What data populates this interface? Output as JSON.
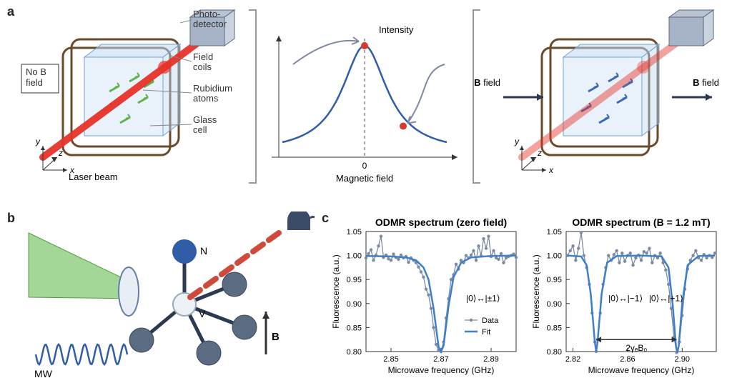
{
  "labels": {
    "a": "a",
    "b": "b",
    "c": "c"
  },
  "panel_a": {
    "photodetector": "Photo-\ndetector",
    "field_coils": "Field\ncoils",
    "rubidium": "Rubidium\natoms",
    "glass_cell": "Glass\ncell",
    "no_b": "No B\nfield",
    "b_field": "B field",
    "laser": "Laser beam",
    "axes": {
      "x": "x",
      "y": "y",
      "z": "z"
    },
    "center_plot": {
      "title_top": "Intensity",
      "xlabel": "Magnetic field",
      "tick0": "0",
      "curve_color": "#2f5da8",
      "marker_color": "#d93a2b",
      "arrow_color": "#7d8aa0",
      "dash_color": "#555555",
      "axis_color": "#333333"
    },
    "colors": {
      "laser": "#e6332a",
      "coil": "#6b4a2a",
      "cell_fill": "#bfd9f0",
      "cell_edge": "#6fa3d8",
      "detector_fill": "#a7b4c8",
      "detector_edge": "#5a6b82",
      "atom_green": "#5fb24a",
      "atom_blue": "#3b68b8",
      "box_edge": "#333333",
      "axis_arrow": "#333333"
    }
  },
  "panel_b": {
    "mw_label": "MW",
    "n_label": "N",
    "v_label": "V",
    "b_label": "B",
    "colors": {
      "green_beam": "#7cc46b",
      "green_beam_edge": "#4f9f3d",
      "objective_fill": "#e8eef5",
      "objective_edge": "#6380a4",
      "red_fluor": "#cf4a3b",
      "detector": "#3a4c66",
      "mw_wave": "#2f5da8",
      "atom_n": "#2f5da8",
      "atom_v": "#eef2f7",
      "atom_v_edge": "#99a8bd",
      "atom_c": "#5a6b82",
      "bond": "#2b3a50",
      "b_arrow": "#333333"
    }
  },
  "panel_c": {
    "left": {
      "title": "ODMR spectrum (zero field)",
      "ylabel": "Fluorescence (a.u.)",
      "xlabel": "Microwave frequency (GHz)",
      "annotation": "|0⟩↔|±1⟩",
      "legend_data": "Data",
      "legend_fit": "Fit",
      "xlim": [
        2.84,
        2.9
      ],
      "xticks": [
        2.85,
        2.87,
        2.89
      ],
      "ylim": [
        0.8,
        1.05
      ],
      "yticks": [
        0.8,
        0.85,
        0.9,
        0.95,
        1.0,
        1.05
      ],
      "data_color": "#7b8aa5",
      "fit_color": "#3f7fc9",
      "marker_r": 2.2,
      "data": [
        [
          2.84,
          0.995
        ],
        [
          2.841,
          1.004
        ],
        [
          2.842,
          1.012
        ],
        [
          2.843,
          0.99
        ],
        [
          2.844,
          1.001
        ],
        [
          2.845,
          1.02
        ],
        [
          2.846,
          1.04
        ],
        [
          2.847,
          0.996
        ],
        [
          2.848,
          1.001
        ],
        [
          2.849,
          0.993
        ],
        [
          2.85,
          0.99
        ],
        [
          2.851,
          1.003
        ],
        [
          2.852,
          0.996
        ],
        [
          2.853,
          0.992
        ],
        [
          2.854,
          1.001
        ],
        [
          2.855,
          0.995
        ],
        [
          2.856,
          0.998
        ],
        [
          2.857,
          0.986
        ],
        [
          2.858,
          0.995
        ],
        [
          2.859,
          0.99
        ],
        [
          2.86,
          0.985
        ],
        [
          2.861,
          0.976
        ],
        [
          2.862,
          0.966
        ],
        [
          2.863,
          0.955
        ],
        [
          2.864,
          0.93
        ],
        [
          2.865,
          0.918
        ],
        [
          2.866,
          0.89
        ],
        [
          2.867,
          0.85
        ],
        [
          2.868,
          0.815
        ],
        [
          2.869,
          0.803
        ],
        [
          2.87,
          0.8
        ],
        [
          2.871,
          0.82
        ],
        [
          2.872,
          0.87
        ],
        [
          2.873,
          0.91
        ],
        [
          2.874,
          0.95
        ],
        [
          2.875,
          0.96
        ],
        [
          2.876,
          0.982
        ],
        [
          2.877,
          0.972
        ],
        [
          2.878,
          0.99
        ],
        [
          2.879,
          0.985
        ],
        [
          2.88,
          1.0
        ],
        [
          2.881,
          0.995
        ],
        [
          2.882,
          1.001
        ],
        [
          2.883,
          1.01
        ],
        [
          2.884,
          0.99
        ],
        [
          2.885,
          1.02
        ],
        [
          2.886,
          1.0
        ],
        [
          2.887,
          1.035
        ],
        [
          2.888,
          1.015
        ],
        [
          2.889,
          1.04
        ],
        [
          2.89,
          0.998
        ],
        [
          2.891,
          1.01
        ],
        [
          2.892,
          0.995
        ],
        [
          2.893,
          0.992
        ],
        [
          2.894,
          1.004
        ],
        [
          2.895,
          0.985
        ],
        [
          2.896,
          0.995
        ],
        [
          2.897,
          0.998
        ],
        [
          2.898,
          1.0
        ],
        [
          2.899,
          1.003
        ],
        [
          2.9,
          0.996
        ]
      ],
      "fit": [
        [
          2.84,
          0.999
        ],
        [
          2.85,
          0.998
        ],
        [
          2.856,
          0.996
        ],
        [
          2.86,
          0.99
        ],
        [
          2.863,
          0.975
        ],
        [
          2.865,
          0.95
        ],
        [
          2.867,
          0.89
        ],
        [
          2.869,
          0.81
        ],
        [
          2.87,
          0.8
        ],
        [
          2.871,
          0.812
        ],
        [
          2.873,
          0.895
        ],
        [
          2.875,
          0.955
        ],
        [
          2.878,
          0.985
        ],
        [
          2.882,
          0.996
        ],
        [
          2.89,
          0.999
        ],
        [
          2.9,
          1.0
        ]
      ]
    },
    "right": {
      "title": "ODMR spectrum (B = 1.2 mT)",
      "ylabel": "Fluorescence (a.u.)",
      "xlabel": "Microwave frequency (GHz)",
      "annotation_left": "|0⟩↔|−1⟩",
      "annotation_right": "|0⟩↔|+1⟩",
      "split_label": "2γₑB₀",
      "xlim": [
        2.815,
        2.925
      ],
      "xticks": [
        2.82,
        2.86,
        2.9
      ],
      "ylim": [
        0.8,
        1.05
      ],
      "yticks": [
        0.8,
        0.85,
        0.9,
        0.95,
        1.0,
        1.05
      ],
      "data_color": "#7b8aa5",
      "fit_color": "#3f7fc9",
      "marker_r": 2.2,
      "split_arrow_color": "#333333",
      "data": [
        [
          2.816,
          1.0
        ],
        [
          2.818,
          1.01
        ],
        [
          2.82,
          1.02
        ],
        [
          2.822,
          0.99
        ],
        [
          2.824,
          1.015
        ],
        [
          2.826,
          1.048
        ],
        [
          2.828,
          1.0
        ],
        [
          2.83,
          0.975
        ],
        [
          2.832,
          0.94
        ],
        [
          2.834,
          0.88
        ],
        [
          2.836,
          0.82
        ],
        [
          2.837,
          0.8
        ],
        [
          2.838,
          0.825
        ],
        [
          2.84,
          0.88
        ],
        [
          2.842,
          0.94
        ],
        [
          2.844,
          0.975
        ],
        [
          2.846,
          1.0
        ],
        [
          2.848,
          0.99
        ],
        [
          2.85,
          1.002
        ],
        [
          2.852,
          1.01
        ],
        [
          2.854,
          0.985
        ],
        [
          2.856,
          1.005
        ],
        [
          2.858,
          0.988
        ],
        [
          2.86,
          1.0
        ],
        [
          2.862,
          1.005
        ],
        [
          2.864,
          0.98
        ],
        [
          2.866,
          0.995
        ],
        [
          2.868,
          1.001
        ],
        [
          2.87,
          0.99
        ],
        [
          2.872,
          1.008
        ],
        [
          2.874,
          1.005
        ],
        [
          2.876,
          1.015
        ],
        [
          2.878,
          0.985
        ],
        [
          2.88,
          1.0
        ],
        [
          2.882,
          0.995
        ],
        [
          2.884,
          1.005
        ],
        [
          2.886,
          0.985
        ],
        [
          2.888,
          0.97
        ],
        [
          2.89,
          0.94
        ],
        [
          2.892,
          0.89
        ],
        [
          2.894,
          0.83
        ],
        [
          2.896,
          0.798
        ],
        [
          2.898,
          0.82
        ],
        [
          2.9,
          0.875
        ],
        [
          2.902,
          0.93
        ],
        [
          2.904,
          0.972
        ],
        [
          2.906,
          0.99
        ],
        [
          2.908,
          1.0
        ],
        [
          2.91,
          1.01
        ],
        [
          2.912,
          0.995
        ],
        [
          2.914,
          0.99
        ],
        [
          2.916,
          1.002
        ],
        [
          2.918,
          0.995
        ],
        [
          2.92,
          1.0
        ],
        [
          2.922,
          0.996
        ],
        [
          2.924,
          1.005
        ]
      ],
      "fit": [
        [
          2.816,
          1.0
        ],
        [
          2.826,
          0.998
        ],
        [
          2.83,
          0.98
        ],
        [
          2.833,
          0.92
        ],
        [
          2.836,
          0.82
        ],
        [
          2.837,
          0.8
        ],
        [
          2.838,
          0.82
        ],
        [
          2.841,
          0.92
        ],
        [
          2.845,
          0.985
        ],
        [
          2.852,
          0.999
        ],
        [
          2.87,
          1.0
        ],
        [
          2.885,
          0.998
        ],
        [
          2.89,
          0.975
        ],
        [
          2.893,
          0.9
        ],
        [
          2.8955,
          0.81
        ],
        [
          2.8965,
          0.798
        ],
        [
          2.8975,
          0.812
        ],
        [
          2.9,
          0.9
        ],
        [
          2.904,
          0.98
        ],
        [
          2.912,
          0.999
        ],
        [
          2.924,
          1.0
        ]
      ]
    }
  }
}
